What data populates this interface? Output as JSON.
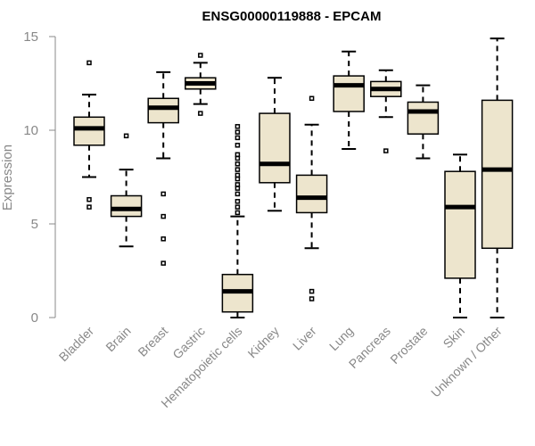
{
  "chart_data": {
    "type": "boxplot",
    "title": "ENSG00000119888 - EPCAM",
    "xlabel": "",
    "ylabel": "Expression",
    "ylim": [
      0,
      15
    ],
    "yticks": [
      0,
      5,
      10,
      15
    ],
    "box_fill": "#ede5cd",
    "axis_color": "#888888",
    "categories": [
      "Bladder",
      "Brain",
      "Breast",
      "Gastric",
      "Hematopoietic cells",
      "Kidney",
      "Liver",
      "Lung",
      "Pancreas",
      "Prostate",
      "Skin",
      "Unknown / Other"
    ],
    "boxes": [
      {
        "name": "Bladder",
        "whislo": 7.5,
        "q1": 9.2,
        "med": 10.1,
        "q3": 10.7,
        "whishi": 11.9,
        "fliers": [
          5.9,
          6.3,
          13.6
        ]
      },
      {
        "name": "Brain",
        "whislo": 3.8,
        "q1": 5.4,
        "med": 5.8,
        "q3": 6.5,
        "whishi": 7.9,
        "fliers": [
          9.7
        ]
      },
      {
        "name": "Breast",
        "whislo": 8.5,
        "q1": 10.4,
        "med": 11.2,
        "q3": 11.7,
        "whishi": 13.1,
        "fliers": [
          2.9,
          4.2,
          5.4,
          6.6
        ]
      },
      {
        "name": "Gastric",
        "whislo": 11.4,
        "q1": 12.2,
        "med": 12.5,
        "q3": 12.8,
        "whishi": 13.6,
        "fliers": [
          10.9,
          14.0
        ]
      },
      {
        "name": "Hematopoietic cells",
        "whislo": 0.0,
        "q1": 0.3,
        "med": 1.4,
        "q3": 2.3,
        "whishi": 5.4,
        "fliers": [
          5.6,
          5.9,
          6.2,
          6.6,
          6.9,
          7.1,
          7.4,
          7.6,
          7.9,
          8.2,
          8.5,
          8.7,
          9.2,
          9.6,
          9.9,
          10.2
        ]
      },
      {
        "name": "Kidney",
        "whislo": 5.7,
        "q1": 7.2,
        "med": 8.2,
        "q3": 10.9,
        "whishi": 12.8,
        "fliers": []
      },
      {
        "name": "Liver",
        "whislo": 3.7,
        "q1": 5.6,
        "med": 6.4,
        "q3": 7.6,
        "whishi": 10.3,
        "fliers": [
          1.0,
          1.4,
          11.7
        ]
      },
      {
        "name": "Lung",
        "whislo": 9.0,
        "q1": 11.0,
        "med": 12.4,
        "q3": 12.9,
        "whishi": 14.2,
        "fliers": []
      },
      {
        "name": "Pancreas",
        "whislo": 10.7,
        "q1": 11.8,
        "med": 12.2,
        "q3": 12.6,
        "whishi": 13.2,
        "fliers": [
          8.9
        ]
      },
      {
        "name": "Prostate",
        "whislo": 8.5,
        "q1": 9.8,
        "med": 11.0,
        "q3": 11.5,
        "whishi": 12.4,
        "fliers": []
      },
      {
        "name": "Skin",
        "whislo": 0.0,
        "q1": 2.1,
        "med": 5.9,
        "q3": 7.8,
        "whishi": 8.7,
        "fliers": []
      },
      {
        "name": "Unknown / Other",
        "whislo": 0.0,
        "q1": 3.7,
        "med": 7.9,
        "q3": 11.6,
        "whishi": 14.9,
        "fliers": []
      }
    ]
  }
}
